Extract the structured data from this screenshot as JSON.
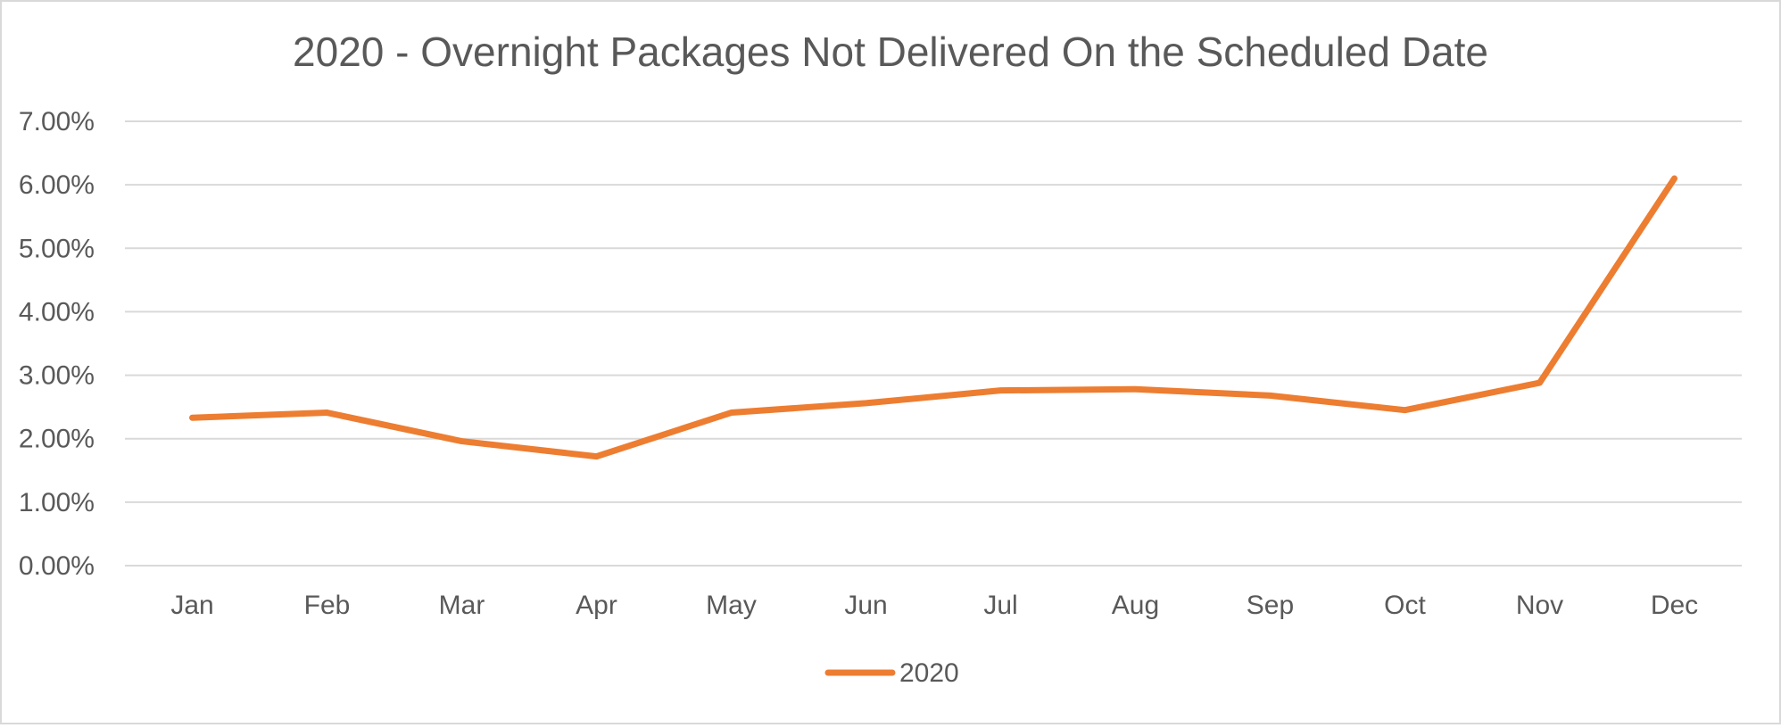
{
  "chart_data": {
    "type": "line",
    "title": "2020 - Overnight Packages Not Delivered On the Scheduled Date",
    "xlabel": "",
    "ylabel": "",
    "categories": [
      "Jan",
      "Feb",
      "Mar",
      "Apr",
      "May",
      "Jun",
      "Jul",
      "Aug",
      "Sep",
      "Oct",
      "Nov",
      "Dec"
    ],
    "series": [
      {
        "name": "2020",
        "color": "#ED7D31",
        "values": [
          0.0233,
          0.0241,
          0.0196,
          0.0172,
          0.0241,
          0.0256,
          0.0276,
          0.0278,
          0.0268,
          0.0245,
          0.0288,
          0.061
        ]
      }
    ],
    "ylim": [
      0,
      0.07
    ],
    "yticks": [
      0,
      0.01,
      0.02,
      0.03,
      0.04,
      0.05,
      0.06,
      0.07
    ],
    "ytick_labels": [
      "0.00%",
      "1.00%",
      "2.00%",
      "3.00%",
      "4.00%",
      "5.00%",
      "6.00%",
      "7.00%"
    ],
    "grid": true,
    "grid_color": "#d9d9d9",
    "legend": {
      "position": "bottom",
      "entries": [
        "2020"
      ]
    }
  }
}
